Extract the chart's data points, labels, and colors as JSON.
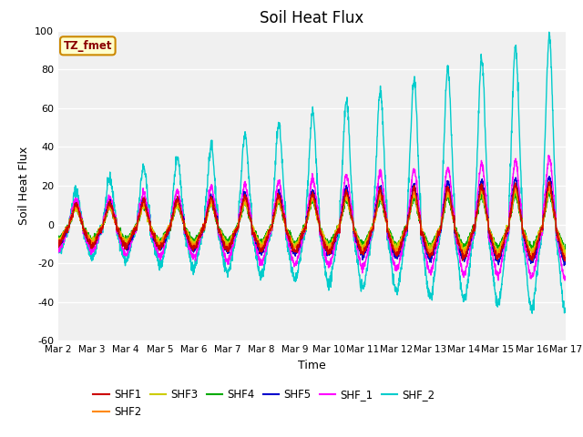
{
  "title": "Soil Heat Flux",
  "xlabel": "Time",
  "ylabel": "Soil Heat Flux",
  "ylim": [
    -60,
    100
  ],
  "background_color": "#f0f0f0",
  "annotation_text": "TZ_fmet",
  "annotation_bg": "#ffffcc",
  "annotation_border": "#cc8800",
  "annotation_text_color": "#8b0000",
  "series_colors": {
    "SHF1": "#cc0000",
    "SHF2": "#ff8800",
    "SHF3": "#cccc00",
    "SHF4": "#00aa00",
    "SHF5": "#0000cc",
    "SHF_1": "#ff00ff",
    "SHF_2": "#00cccc"
  },
  "xtick_labels": [
    "Mar 2",
    "Mar 3",
    "Mar 4",
    "Mar 5",
    "Mar 6",
    "Mar 7",
    "Mar 8",
    "Mar 9",
    "Mar 10",
    "Mar 11",
    "Mar 12",
    "Mar 13",
    "Mar 14",
    "Mar 15",
    "Mar 16",
    "Mar 17"
  ],
  "ytick_labels": [
    -60,
    -40,
    -20,
    0,
    20,
    40,
    60,
    80,
    100
  ],
  "num_points": 2160,
  "seed": 42
}
